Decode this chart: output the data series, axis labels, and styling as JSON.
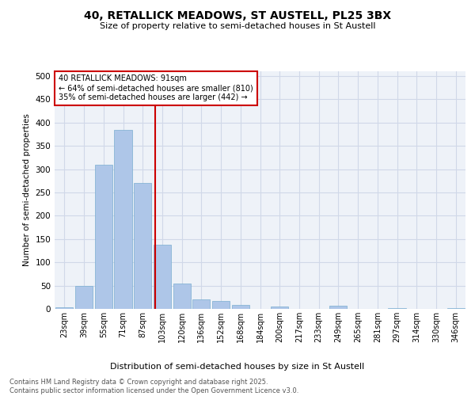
{
  "title_line1": "40, RETALLICK MEADOWS, ST AUSTELL, PL25 3BX",
  "title_line2": "Size of property relative to semi-detached houses in St Austell",
  "xlabel": "Distribution of semi-detached houses by size in St Austell",
  "ylabel": "Number of semi-detached properties",
  "categories": [
    "23sqm",
    "39sqm",
    "55sqm",
    "71sqm",
    "87sqm",
    "103sqm",
    "120sqm",
    "136sqm",
    "152sqm",
    "168sqm",
    "184sqm",
    "200sqm",
    "217sqm",
    "233sqm",
    "249sqm",
    "265sqm",
    "281sqm",
    "297sqm",
    "314sqm",
    "330sqm",
    "346sqm"
  ],
  "values": [
    3,
    50,
    310,
    385,
    270,
    137,
    55,
    20,
    17,
    8,
    0,
    5,
    0,
    0,
    6,
    0,
    0,
    1,
    0,
    0,
    2
  ],
  "bar_color": "#aec6e8",
  "bar_edge_color": "#7aaed0",
  "grid_color": "#d0d8e8",
  "background_color": "#eef2f8",
  "vline_x_index": 4.62,
  "vline_color": "#cc0000",
  "annotation_text": "40 RETALLICK MEADOWS: 91sqm\n← 64% of semi-detached houses are smaller (810)\n35% of semi-detached houses are larger (442) →",
  "annotation_box_color": "#ffffff",
  "annotation_box_edge": "#cc0000",
  "footer_text": "Contains HM Land Registry data © Crown copyright and database right 2025.\nContains public sector information licensed under the Open Government Licence v3.0.",
  "ylim": [
    0,
    510
  ],
  "yticks": [
    0,
    50,
    100,
    150,
    200,
    250,
    300,
    350,
    400,
    450,
    500
  ]
}
